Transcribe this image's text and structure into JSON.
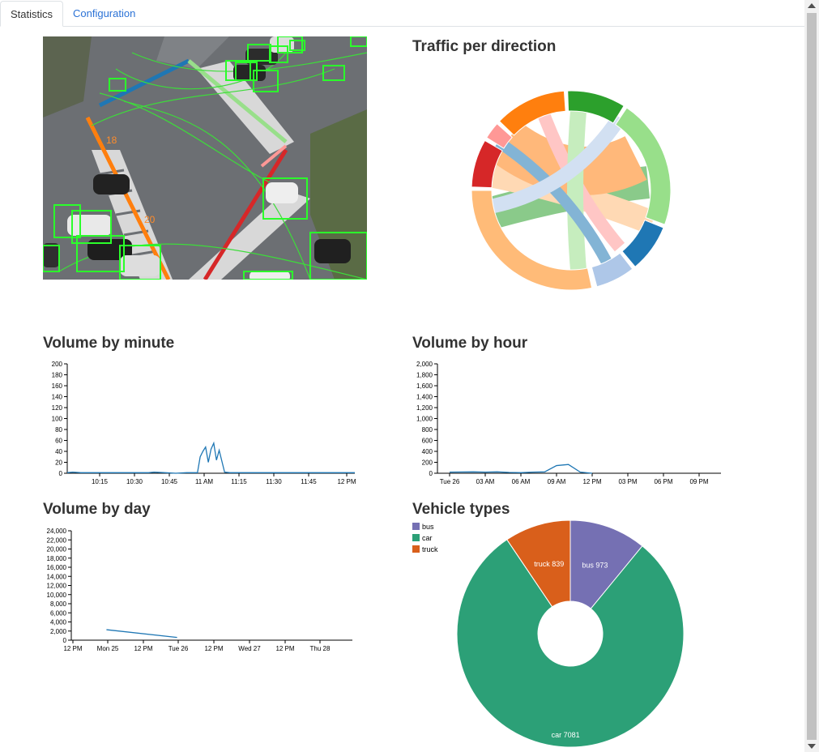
{
  "tabs": {
    "statistics": "Statistics",
    "configuration": "Configuration"
  },
  "camera": {
    "counter_labels": [
      "18",
      "20"
    ]
  },
  "traffic": {
    "title": "Traffic per direction",
    "arc_colors": [
      "#2ca02c",
      "#98df8a",
      "#1f77b4",
      "#aec7e8",
      "#ffbb78",
      "#d62728",
      "#ff9896",
      "#ff7f0e"
    ]
  },
  "minute": {
    "title": "Volume by minute",
    "chart_data": {
      "type": "line",
      "y_ticks": [
        0,
        20,
        40,
        60,
        80,
        100,
        120,
        140,
        160,
        180,
        200
      ],
      "x_ticks": [
        "10:15",
        "10:30",
        "10:45",
        "11 AM",
        "11:15",
        "11:30",
        "11:45",
        "12 PM"
      ],
      "ylim": [
        0,
        200
      ],
      "x": [
        0,
        2,
        5,
        8,
        12,
        16,
        20,
        24,
        28,
        30,
        32,
        36,
        40,
        44,
        48,
        49,
        50,
        51,
        52,
        53,
        54,
        55,
        56,
        58,
        60,
        64,
        68,
        72,
        76,
        80,
        84,
        88,
        92,
        96,
        100,
        106
      ],
      "values": [
        1,
        2,
        1,
        1,
        1,
        1,
        1,
        1,
        1,
        1,
        2,
        1,
        0,
        1,
        1,
        30,
        40,
        48,
        20,
        44,
        55,
        24,
        42,
        2,
        1,
        1,
        1,
        1,
        1,
        1,
        1,
        1,
        1,
        1,
        1,
        1
      ]
    }
  },
  "hour": {
    "title": "Volume by hour",
    "chart_data": {
      "type": "line",
      "y_ticks": [
        "0",
        "200",
        "400",
        "600",
        "800",
        "1,000",
        "1,200",
        "1,400",
        "1,600",
        "1,800",
        "2,000"
      ],
      "x_ticks": [
        "Tue 26",
        "03 AM",
        "06 AM",
        "09 AM",
        "12 PM",
        "03 PM",
        "06 PM",
        "09 PM"
      ],
      "ylim": [
        0,
        2000
      ],
      "x": [
        0,
        2,
        3,
        4,
        5,
        6,
        7,
        8,
        9,
        10,
        11,
        12
      ],
      "values": [
        20,
        25,
        20,
        25,
        15,
        10,
        20,
        25,
        140,
        160,
        20,
        0
      ]
    }
  },
  "day": {
    "title": "Volume by day",
    "chart_data": {
      "type": "line",
      "y_ticks": [
        "0",
        "2,000",
        "4,000",
        "6,000",
        "8,000",
        "10,000",
        "12,000",
        "14,000",
        "16,000",
        "18,000",
        "20,000",
        "22,000",
        "24,000"
      ],
      "x_ticks": [
        "12 PM",
        "Mon 25",
        "12 PM",
        "Tue 26",
        "12 PM",
        "Wed 27",
        "12 PM",
        "Thu 28"
      ],
      "ylim": [
        0,
        24000
      ],
      "x": [
        0.95,
        2.95
      ],
      "values": [
        2300,
        600
      ]
    }
  },
  "vehicle": {
    "title": "Vehicle types",
    "chart_data": {
      "type": "pie",
      "legend": [
        "bus",
        "car",
        "truck"
      ],
      "labels": [
        "bus 973",
        "car 7081",
        "truck 839"
      ],
      "values": [
        973,
        7081,
        839
      ],
      "colors": [
        "#7570b3",
        "#2ca077",
        "#d95f1b"
      ]
    }
  }
}
